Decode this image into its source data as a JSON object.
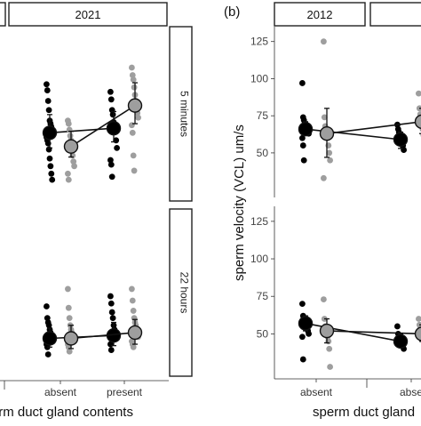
{
  "panels": {
    "right_panel_letter": "(b)"
  },
  "chart_data": [
    {
      "type": "scatter",
      "panel": "left",
      "facet_column": "2021",
      "facet_rows": [
        "5 minutes",
        "22 hours"
      ],
      "xlabel": "sperm duct gland contents",
      "categories": [
        "absent",
        "present"
      ],
      "ylim": [
        20,
        135
      ],
      "grid": false,
      "series_colors": {
        "dark": "#000000",
        "light": "#9e9e9e"
      },
      "rows": [
        {
          "facet": "5 minutes",
          "points": {
            "absent": {
              "dark": [
                97,
                93,
                86,
                80,
                73,
                71,
                69,
                67,
                65,
                62,
                60,
                58,
                54,
                48,
                43,
                38,
                34
              ],
              "light": [
                73,
                71,
                67,
                63,
                60,
                55,
                50,
                46,
                43,
                38,
                34
              ]
            },
            "present": {
              "dark": [
                92,
                87,
                80,
                77,
                72,
                68,
                66,
                60,
                55,
                47,
                44,
                36
              ],
              "light": [
                108,
                103,
                100,
                95,
                90,
                86,
                82,
                78,
                75,
                70,
                65,
                50,
                40
              ]
            }
          },
          "means": {
            "dark": {
              "absent": 65,
              "present": 68
            },
            "light": {
              "absent": 56,
              "present": 83
            }
          },
          "error_bars": {
            "dark": {
              "absent": [
                55,
                77
              ],
              "present": [
                59,
                79
              ]
            },
            "light": {
              "absent": [
                49,
                66
              ],
              "present": [
                71,
                98
              ]
            }
          }
        },
        {
          "facet": "22 hours",
          "points": {
            "absent": {
              "dark": [
                68,
                60,
                57,
                55,
                52,
                50,
                48,
                46,
                44,
                42,
                40,
                35
              ],
              "light": [
                80,
                67,
                60,
                55,
                52,
                50,
                48,
                46,
                44,
                42,
                40,
                37
              ]
            },
            "present": {
              "dark": [
                75,
                70,
                64,
                60,
                55,
                52,
                50,
                48,
                46,
                42,
                38
              ],
              "light": [
                80,
                72,
                65,
                60,
                57,
                55,
                52,
                50,
                47,
                44,
                42,
                40
              ]
            }
          },
          "means": {
            "dark": {
              "absent": 46,
              "present": 48
            },
            "light": {
              "absent": 46,
              "present": 50
            }
          },
          "error_bars": {
            "dark": {
              "absent": [
                40,
                53
              ],
              "present": [
                41,
                57
              ]
            },
            "light": {
              "absent": [
                39,
                55
              ],
              "present": [
                42,
                59
              ]
            }
          }
        }
      ]
    },
    {
      "type": "scatter",
      "panel": "right",
      "facet_column": "2012",
      "ylabel": "sperm velocity (VCL) um/s",
      "xlabel": "sperm duct gland",
      "categories": [
        "absent",
        "abse"
      ],
      "ylim": [
        20,
        135
      ],
      "yticks": [
        50,
        75,
        100,
        125
      ],
      "grid": false,
      "series_colors": {
        "dark": "#000000",
        "light": "#9e9e9e"
      },
      "rows": [
        {
          "facet": "5 minutes",
          "points": {
            "absent": {
              "dark": [
                97,
                74,
                72,
                68,
                67,
                66,
                65,
                64,
                63,
                60,
                55,
                45
              ],
              "light": [
                125,
                74,
                68,
                65,
                62,
                60,
                55,
                50,
                45,
                33
              ]
            },
            "abse": {
              "dark": [
                69,
                66,
                64,
                62,
                60,
                59,
                57,
                55,
                52
              ],
              "light": [
                90,
                80,
                76,
                72,
                70,
                66,
                62,
                58
              ]
            }
          },
          "means": {
            "dark": {
              "absent": 66,
              "abse": 59
            },
            "light": {
              "absent": 63,
              "abse": 71
            }
          },
          "error_bars": {
            "dark": {
              "absent": [
                62,
                71
              ],
              "abse": [
                53,
                64
              ]
            },
            "light": {
              "absent": [
                47,
                80
              ],
              "abse": [
                63,
                80
              ]
            }
          }
        },
        {
          "facet": "22 hours",
          "points": {
            "absent": {
              "dark": [
                70,
                62,
                60,
                58,
                57,
                55,
                54,
                52,
                50,
                48,
                33
              ],
              "light": [
                73,
                60,
                55,
                52,
                50,
                48,
                45,
                40,
                28
              ]
            },
            "abse": {
              "dark": [
                55,
                50,
                48,
                46,
                45,
                44,
                43,
                42,
                40
              ],
              "light": [
                60,
                56,
                53,
                51,
                49,
                47,
                45,
                42
              ]
            }
          },
          "means": {
            "dark": {
              "absent": 57,
              "abse": 45
            },
            "light": {
              "absent": 52,
              "abse": 50
            }
          },
          "error_bars": {
            "dark": {
              "absent": [
                52,
                62
              ],
              "abse": [
                41,
                50
              ]
            },
            "light": {
              "absent": [
                44,
                60
              ],
              "abse": [
                45,
                56
              ]
            }
          }
        }
      ]
    }
  ]
}
